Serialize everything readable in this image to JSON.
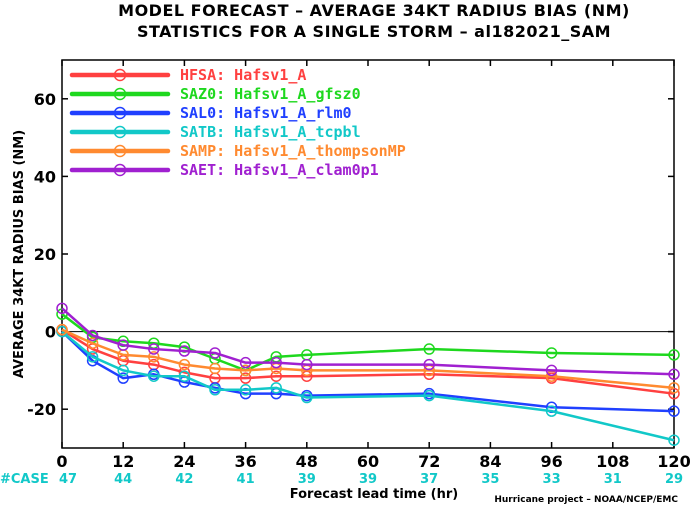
{
  "chart_data": {
    "type": "line",
    "title": "MODEL FORECAST – AVERAGE 34KT RADIUS BIAS (NM)",
    "subtitle": "STATISTICS FOR A SINGLE STORM – al182021_SAM",
    "xlabel": "Forecast lead time (hr)",
    "ylabel": "AVERAGE 34KT RADIUS BIAS (NM)",
    "xlim": [
      0,
      120
    ],
    "ylim": [
      -30,
      70
    ],
    "xticks": [
      0,
      12,
      24,
      36,
      48,
      60,
      72,
      84,
      96,
      108,
      120
    ],
    "yticks": [
      -20,
      0,
      20,
      40,
      60
    ],
    "grid": false,
    "zero_line": true,
    "legend_position": "top-left",
    "case_label": "#CASE",
    "cases": [
      {
        "x": 0,
        "n": "47"
      },
      {
        "x": 12,
        "n": "44"
      },
      {
        "x": 24,
        "n": "42"
      },
      {
        "x": 36,
        "n": "41"
      },
      {
        "x": 48,
        "n": "39"
      },
      {
        "x": 60,
        "n": "39"
      },
      {
        "x": 72,
        "n": "37"
      },
      {
        "x": 84,
        "n": "35"
      },
      {
        "x": 96,
        "n": "33"
      },
      {
        "x": 108,
        "n": "31"
      },
      {
        "x": 120,
        "n": "29"
      }
    ],
    "credit": "Hurricane project – NOAA/NCEP/EMC",
    "series": [
      {
        "code": "HFSA:",
        "name": "Hafsv1_A",
        "color": "#ff4040",
        "x": [
          0,
          6,
          12,
          18,
          24,
          30,
          36,
          42,
          48,
          72,
          96,
          120
        ],
        "y": [
          0.5,
          -4.5,
          -7.5,
          -8.5,
          -10.5,
          -12,
          -12,
          -11.5,
          -11.5,
          -11,
          -12,
          -16
        ]
      },
      {
        "code": "SAZ0:",
        "name": "Hafsv1_A_gfsz0",
        "color": "#1ed81e",
        "x": [
          0,
          6,
          12,
          18,
          24,
          30,
          36,
          42,
          48,
          72,
          96,
          120
        ],
        "y": [
          4.5,
          -1.5,
          -2.5,
          -3,
          -4,
          -7,
          -10,
          -6.5,
          -6,
          -4.5,
          -5.5,
          -6
        ]
      },
      {
        "code": "SAL0:",
        "name": "Hafsv1_A_rlm0",
        "color": "#2040ff",
        "x": [
          0,
          6,
          12,
          18,
          24,
          30,
          36,
          42,
          48,
          72,
          96,
          120
        ],
        "y": [
          0,
          -7.5,
          -12,
          -11,
          -13,
          -14.5,
          -16,
          -16,
          -16.5,
          -16,
          -19.5,
          -20.5
        ]
      },
      {
        "code": "SATB:",
        "name": "Hafsv1_A_tcpbl",
        "color": "#12c8c8",
        "x": [
          0,
          6,
          12,
          18,
          24,
          30,
          36,
          42,
          48,
          72,
          96,
          120
        ],
        "y": [
          0,
          -6.5,
          -10,
          -11.5,
          -11.5,
          -15,
          -15,
          -14.5,
          -17,
          -16.5,
          -20.5,
          -28
        ]
      },
      {
        "code": "SAMP:",
        "name": "Hafsv1_A_thompsonMP",
        "color": "#ff8a30",
        "x": [
          0,
          6,
          12,
          18,
          24,
          30,
          36,
          42,
          48,
          72,
          96,
          120
        ],
        "y": [
          0.5,
          -3,
          -6,
          -6.5,
          -8.5,
          -9.5,
          -10,
          -9.5,
          -10,
          -10,
          -11.5,
          -14.5
        ]
      },
      {
        "code": "SAET:",
        "name": "Hafsv1_A_clam0p1",
        "color": "#a020d0",
        "x": [
          0,
          6,
          12,
          18,
          24,
          30,
          36,
          42,
          48,
          72,
          96,
          120
        ],
        "y": [
          6,
          -1,
          -3.5,
          -4.5,
          -5,
          -5.5,
          -8,
          -8,
          -8.5,
          -8.5,
          -10,
          -11
        ]
      }
    ]
  }
}
